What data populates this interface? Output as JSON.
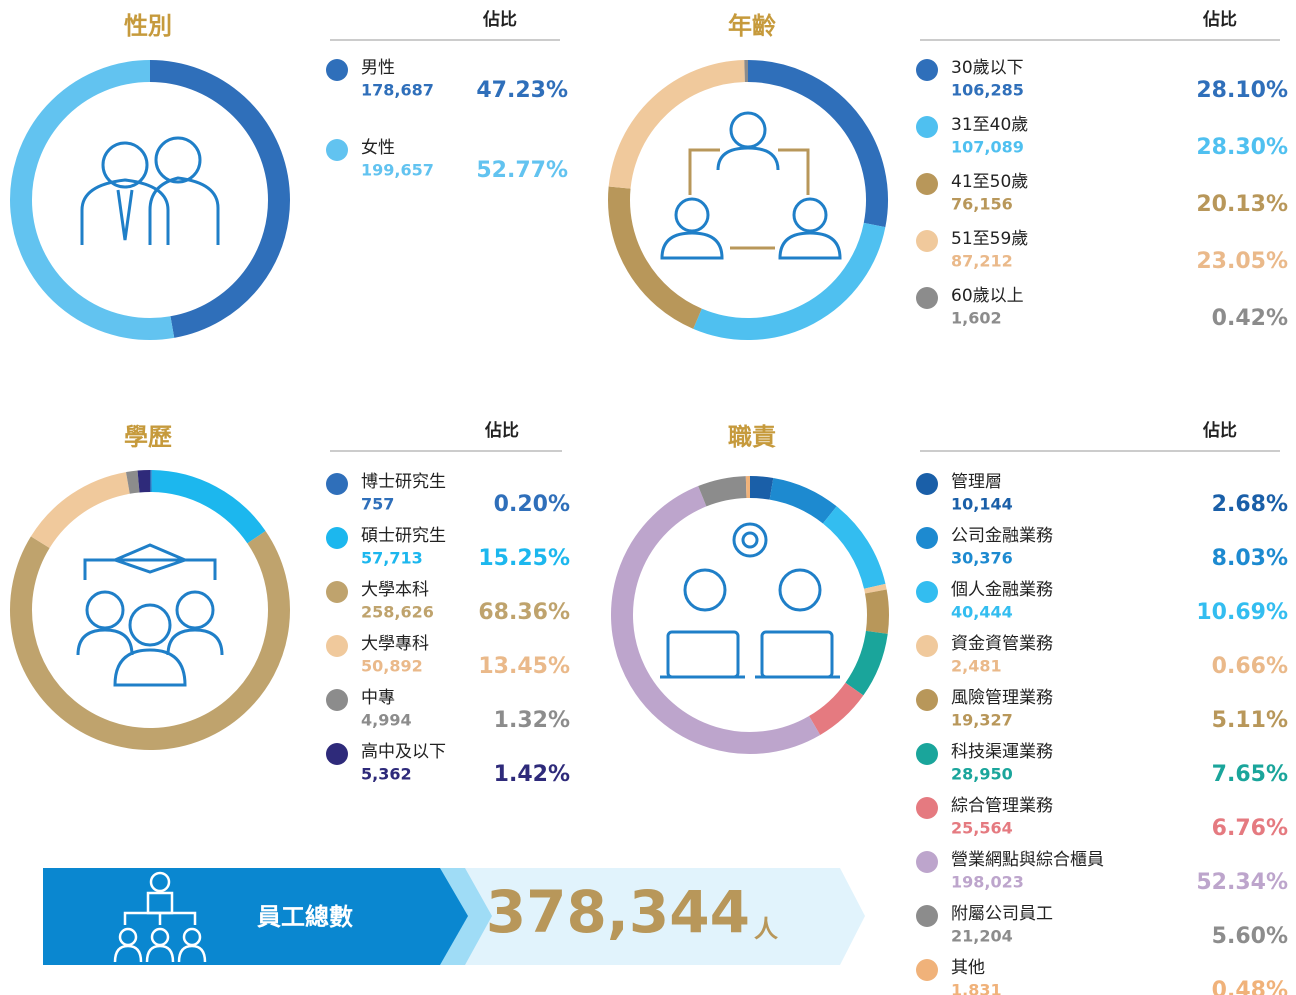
{
  "chart_data": [
    {
      "type": "donut",
      "title": "性別",
      "share_label": "佔比",
      "categories": [
        "男性",
        "女性"
      ],
      "values": [
        47.23,
        52.77
      ],
      "value_labels": [
        "47.23%",
        "52.77%"
      ],
      "counts": [
        178687,
        199657
      ],
      "count_labels": [
        "178,687",
        "199,657"
      ],
      "colors": [
        "#2f6fba",
        "#62c3f0"
      ]
    },
    {
      "type": "donut",
      "title": "年齡",
      "share_label": "佔比",
      "categories": [
        "30歲以下",
        "31至40歲",
        "41至50歲",
        "51至59歲",
        "60歲以上"
      ],
      "values": [
        28.1,
        28.3,
        20.13,
        23.05,
        0.42
      ],
      "value_labels": [
        "28.10%",
        "28.30%",
        "20.13%",
        "23.05%",
        "0.42%"
      ],
      "counts": [
        106285,
        107089,
        76156,
        87212,
        1602
      ],
      "count_labels": [
        "106,285",
        "107,089",
        "76,156",
        "87,212",
        "1,602"
      ],
      "colors": [
        "#2f6fba",
        "#4fc0f0",
        "#b8975a",
        "#f0c99c",
        "#8c8c8c"
      ]
    },
    {
      "type": "donut",
      "title": "學歷",
      "share_label": "佔比",
      "categories": [
        "博士研究生",
        "碩士研究生",
        "大學本科",
        "大學專科",
        "中專",
        "高中及以下"
      ],
      "values": [
        0.2,
        15.25,
        68.36,
        13.45,
        1.32,
        1.42
      ],
      "value_labels": [
        "0.20%",
        "15.25%",
        "68.36%",
        "13.45%",
        "1.32%",
        "1.42%"
      ],
      "counts": [
        757,
        57713,
        258626,
        50892,
        4994,
        5362
      ],
      "count_labels": [
        "757",
        "57,713",
        "258,626",
        "50,892",
        "4,994",
        "5,362"
      ],
      "colors": [
        "#2f6fba",
        "#1cb7ee",
        "#bfa36d",
        "#f0c99c",
        "#8c8c8c",
        "#2e2a7a"
      ]
    },
    {
      "type": "donut",
      "title": "職責",
      "share_label": "佔比",
      "categories": [
        "管理層",
        "公司金融業務",
        "個人金融業務",
        "資金資管業務",
        "風險管理業務",
        "科技渠運業務",
        "綜合管理業務",
        "營業網點與綜合櫃員",
        "附屬公司員工",
        "其他"
      ],
      "values": [
        2.68,
        8.03,
        10.69,
        0.66,
        5.11,
        7.65,
        6.76,
        52.34,
        5.6,
        0.48
      ],
      "value_labels": [
        "2.68%",
        "8.03%",
        "10.69%",
        "0.66%",
        "5.11%",
        "7.65%",
        "6.76%",
        "52.34%",
        "5.60%",
        "0.48%"
      ],
      "counts": [
        10144,
        30376,
        40444,
        2481,
        19327,
        28950,
        25564,
        198023,
        21204,
        1831
      ],
      "count_labels": [
        "10,144",
        "30,376",
        "40,444",
        "2,481",
        "19,327",
        "28,950",
        "25,564",
        "198,023",
        "21,204",
        "1,831"
      ],
      "colors": [
        "#1a5fa8",
        "#1d8ad0",
        "#33bdf0",
        "#f0c99c",
        "#b8975a",
        "#1aa59b",
        "#e57a80",
        "#bda5cc",
        "#8c8c8c",
        "#f0b27a"
      ]
    }
  ],
  "total": {
    "label": "員工總數",
    "value": 378344,
    "value_label": "378,344",
    "unit": "人"
  }
}
